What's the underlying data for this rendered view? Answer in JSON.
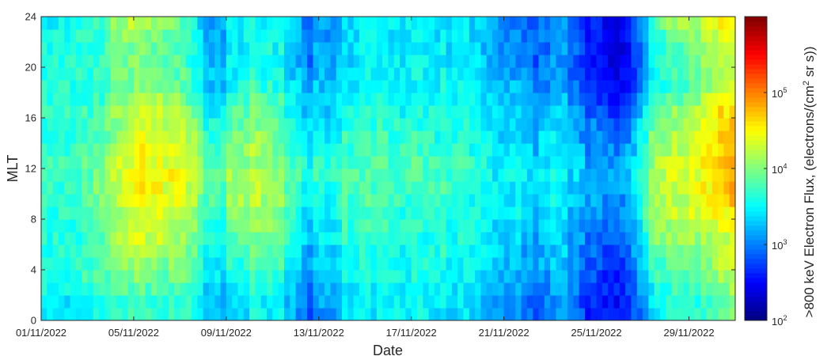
{
  "chart_data": {
    "type": "heatmap",
    "xlabel": "Date",
    "ylabel": "MLT",
    "x_start": "01/11/2022",
    "x_end": "01/12/2022",
    "x_ticks": [
      "01/11/2022",
      "05/11/2022",
      "09/11/2022",
      "13/11/2022",
      "17/11/2022",
      "21/11/2022",
      "25/11/2022",
      "29/11/2022"
    ],
    "ylim": [
      0,
      24
    ],
    "y_ticks": [
      0,
      4,
      8,
      12,
      16,
      20,
      24
    ],
    "mlt_bins": [
      0.5,
      1.5,
      2.5,
      3.5,
      4.5,
      5.5,
      6.5,
      7.5,
      8.5,
      9.5,
      10.5,
      11.5,
      12.5,
      13.5,
      14.5,
      15.5,
      16.5,
      17.5,
      18.5,
      19.5,
      20.5,
      21.5,
      22.5,
      23.5
    ],
    "colorbar": {
      "label": ">800 keV Electron Flux, (electrons/(cm² sr s))",
      "scale": "log",
      "range": [
        100,
        1000000
      ],
      "colormap": "jet",
      "ticks": [
        {
          "value": 100,
          "base": "10",
          "exp": "2"
        },
        {
          "value": 1000,
          "base": "10",
          "exp": "3"
        },
        {
          "value": 10000,
          "base": "10",
          "exp": "4"
        },
        {
          "value": 100000,
          "base": "10",
          "exp": "5"
        }
      ]
    },
    "log10_flux_by_day": [
      {
        "date": "01/11/2022",
        "day": 0,
        "log10_flux": [
          3.4,
          3.4,
          3.5,
          3.6,
          3.6,
          3.6,
          3.6,
          3.6,
          3.6,
          3.7,
          3.7,
          3.7,
          3.8,
          3.7,
          3.6,
          3.6,
          3.7,
          3.6,
          3.6,
          3.6,
          3.6,
          3.6,
          3.6,
          3.5
        ]
      },
      {
        "date": "02/11/2022",
        "day": 1,
        "log10_flux": [
          3.4,
          3.4,
          3.5,
          3.6,
          3.6,
          3.6,
          3.6,
          3.6,
          3.7,
          3.7,
          3.7,
          3.7,
          3.8,
          3.7,
          3.6,
          3.6,
          3.7,
          3.6,
          3.6,
          3.6,
          3.6,
          3.6,
          3.6,
          3.5
        ]
      },
      {
        "date": "03/11/2022",
        "day": 2,
        "log10_flux": [
          3.5,
          3.5,
          3.6,
          3.7,
          3.7,
          3.7,
          3.7,
          3.7,
          3.8,
          3.9,
          3.9,
          3.9,
          3.9,
          3.8,
          3.7,
          3.7,
          3.7,
          3.6,
          3.6,
          3.6,
          3.6,
          3.6,
          3.6,
          3.6
        ]
      },
      {
        "date": "04/11/2022",
        "day": 3,
        "log10_flux": [
          3.7,
          3.7,
          3.8,
          3.9,
          4.0,
          4.1,
          4.2,
          4.2,
          4.2,
          4.3,
          4.3,
          4.3,
          4.3,
          4.3,
          4.2,
          4.1,
          4.1,
          4.0,
          3.9,
          3.9,
          3.9,
          3.9,
          4.0,
          4.1
        ]
      },
      {
        "date": "05/11/2022",
        "day": 4,
        "log10_flux": [
          3.8,
          3.8,
          3.9,
          4.0,
          4.1,
          4.2,
          4.3,
          4.3,
          4.4,
          4.6,
          4.6,
          4.6,
          4.5,
          4.5,
          4.4,
          4.4,
          4.4,
          4.2,
          4.0,
          4.0,
          4.0,
          4.0,
          4.1,
          4.3
        ]
      },
      {
        "date": "06/11/2022",
        "day": 5,
        "log10_flux": [
          3.7,
          3.7,
          3.8,
          3.9,
          4.0,
          4.1,
          4.2,
          4.2,
          4.3,
          4.4,
          4.4,
          4.5,
          4.4,
          4.4,
          4.3,
          4.3,
          4.2,
          4.1,
          3.9,
          3.9,
          3.9,
          3.9,
          3.9,
          4.0
        ]
      },
      {
        "date": "07/11/2022",
        "day": 6,
        "log10_flux": [
          3.6,
          3.6,
          3.7,
          3.8,
          3.8,
          3.9,
          4.0,
          4.0,
          4.1,
          4.2,
          4.2,
          4.3,
          4.2,
          4.2,
          4.1,
          4.0,
          3.9,
          3.8,
          3.7,
          3.7,
          3.6,
          3.6,
          3.6,
          3.6
        ]
      },
      {
        "date": "08/11/2022",
        "day": 7,
        "log10_flux": [
          3.2,
          3.3,
          3.3,
          3.4,
          3.4,
          3.5,
          3.5,
          3.6,
          3.6,
          3.7,
          3.7,
          3.8,
          3.8,
          3.7,
          3.6,
          3.5,
          3.4,
          3.3,
          3.2,
          3.2,
          3.2,
          3.1,
          3.1,
          3.1
        ]
      },
      {
        "date": "09/11/2022",
        "day": 8,
        "log10_flux": [
          3.4,
          3.4,
          3.5,
          3.6,
          3.7,
          3.8,
          3.9,
          4.0,
          4.1,
          4.2,
          4.2,
          4.2,
          4.1,
          4.1,
          4.0,
          3.9,
          3.9,
          3.8,
          3.6,
          3.5,
          3.5,
          3.5,
          3.5,
          3.5
        ]
      },
      {
        "date": "10/11/2022",
        "day": 9,
        "log10_flux": [
          3.5,
          3.5,
          3.6,
          3.7,
          3.8,
          3.9,
          4.0,
          4.1,
          4.1,
          4.2,
          4.2,
          4.2,
          4.1,
          4.1,
          4.1,
          4.0,
          4.0,
          3.9,
          3.7,
          3.6,
          3.6,
          3.6,
          3.6,
          3.6
        ]
      },
      {
        "date": "11/11/2022",
        "day": 10,
        "log10_flux": [
          3.4,
          3.4,
          3.5,
          3.6,
          3.7,
          3.7,
          3.8,
          3.9,
          3.9,
          4.0,
          4.0,
          4.0,
          3.9,
          3.9,
          3.8,
          3.8,
          3.7,
          3.7,
          3.6,
          3.5,
          3.5,
          3.5,
          3.5,
          3.5
        ]
      },
      {
        "date": "12/11/2022",
        "day": 11,
        "log10_flux": [
          2.9,
          3.0,
          3.0,
          3.1,
          3.2,
          3.2,
          3.3,
          3.4,
          3.4,
          3.5,
          3.5,
          3.6,
          3.6,
          3.5,
          3.4,
          3.4,
          3.3,
          3.3,
          3.2,
          3.1,
          3.0,
          3.0,
          3.0,
          3.0
        ]
      },
      {
        "date": "13/11/2022",
        "day": 12,
        "log10_flux": [
          3.2,
          3.2,
          3.3,
          3.3,
          3.4,
          3.4,
          3.5,
          3.5,
          3.6,
          3.6,
          3.7,
          3.7,
          3.7,
          3.6,
          3.5,
          3.5,
          3.4,
          3.4,
          3.3,
          3.3,
          3.2,
          3.2,
          3.2,
          3.2
        ]
      },
      {
        "date": "14/11/2022",
        "day": 13,
        "log10_flux": [
          3.4,
          3.4,
          3.5,
          3.5,
          3.6,
          3.6,
          3.6,
          3.7,
          3.7,
          3.7,
          3.8,
          3.8,
          3.8,
          3.7,
          3.7,
          3.6,
          3.6,
          3.5,
          3.5,
          3.4,
          3.4,
          3.4,
          3.4,
          3.4
        ]
      },
      {
        "date": "15/11/2022",
        "day": 14,
        "log10_flux": [
          3.5,
          3.5,
          3.5,
          3.6,
          3.6,
          3.6,
          3.7,
          3.7,
          3.7,
          3.8,
          3.8,
          3.8,
          3.8,
          3.8,
          3.7,
          3.7,
          3.6,
          3.6,
          3.5,
          3.5,
          3.5,
          3.5,
          3.5,
          3.5
        ]
      },
      {
        "date": "16/11/2022",
        "day": 15,
        "log10_flux": [
          3.5,
          3.5,
          3.5,
          3.6,
          3.6,
          3.6,
          3.7,
          3.7,
          3.7,
          3.8,
          3.8,
          3.8,
          3.8,
          3.8,
          3.7,
          3.7,
          3.6,
          3.6,
          3.5,
          3.5,
          3.5,
          3.5,
          3.5,
          3.5
        ]
      },
      {
        "date": "17/11/2022",
        "day": 16,
        "log10_flux": [
          3.5,
          3.5,
          3.5,
          3.6,
          3.6,
          3.6,
          3.6,
          3.7,
          3.7,
          3.7,
          3.8,
          3.8,
          3.8,
          3.7,
          3.7,
          3.6,
          3.6,
          3.6,
          3.5,
          3.5,
          3.5,
          3.5,
          3.5,
          3.5
        ]
      },
      {
        "date": "18/11/2022",
        "day": 17,
        "log10_flux": [
          3.4,
          3.4,
          3.5,
          3.5,
          3.5,
          3.6,
          3.6,
          3.6,
          3.7,
          3.7,
          3.7,
          3.7,
          3.7,
          3.7,
          3.6,
          3.6,
          3.6,
          3.5,
          3.5,
          3.5,
          3.4,
          3.4,
          3.4,
          3.4
        ]
      },
      {
        "date": "19/11/2022",
        "day": 18,
        "log10_flux": [
          3.4,
          3.4,
          3.4,
          3.5,
          3.5,
          3.5,
          3.6,
          3.6,
          3.6,
          3.6,
          3.7,
          3.7,
          3.7,
          3.6,
          3.6,
          3.6,
          3.5,
          3.5,
          3.5,
          3.4,
          3.4,
          3.4,
          3.4,
          3.4
        ]
      },
      {
        "date": "20/11/2022",
        "day": 19,
        "log10_flux": [
          3.2,
          3.2,
          3.3,
          3.3,
          3.3,
          3.4,
          3.4,
          3.4,
          3.5,
          3.5,
          3.5,
          3.5,
          3.5,
          3.5,
          3.4,
          3.4,
          3.4,
          3.3,
          3.3,
          3.2,
          3.2,
          3.2,
          3.2,
          3.2
        ]
      },
      {
        "date": "21/11/2022",
        "day": 20,
        "log10_flux": [
          3.0,
          3.0,
          3.1,
          3.1,
          3.2,
          3.2,
          3.3,
          3.3,
          3.4,
          3.4,
          3.4,
          3.5,
          3.5,
          3.4,
          3.4,
          3.3,
          3.3,
          3.2,
          3.2,
          3.1,
          3.0,
          3.0,
          3.0,
          3.0
        ]
      },
      {
        "date": "22/11/2022",
        "day": 21,
        "log10_flux": [
          2.9,
          2.9,
          3.0,
          3.0,
          3.1,
          3.1,
          3.2,
          3.3,
          3.3,
          3.4,
          3.4,
          3.4,
          3.4,
          3.3,
          3.3,
          3.2,
          3.2,
          3.1,
          3.0,
          3.0,
          2.9,
          2.9,
          2.9,
          2.9
        ]
      },
      {
        "date": "23/11/2022",
        "day": 22,
        "log10_flux": [
          3.1,
          3.1,
          3.2,
          3.2,
          3.3,
          3.3,
          3.3,
          3.4,
          3.4,
          3.5,
          3.5,
          3.5,
          3.5,
          3.5,
          3.4,
          3.4,
          3.3,
          3.3,
          3.2,
          3.1,
          3.1,
          3.1,
          3.1,
          3.1
        ]
      },
      {
        "date": "24/11/2022",
        "day": 23,
        "log10_flux": [
          2.7,
          2.7,
          2.7,
          2.8,
          2.8,
          2.9,
          3.0,
          3.0,
          3.1,
          3.1,
          3.2,
          3.2,
          3.2,
          3.1,
          3.0,
          3.0,
          2.9,
          2.8,
          2.7,
          2.6,
          2.6,
          2.6,
          2.6,
          2.6
        ]
      },
      {
        "date": "25/11/2022",
        "day": 24,
        "log10_flux": [
          2.5,
          2.5,
          2.6,
          2.6,
          2.7,
          2.8,
          2.8,
          2.9,
          3.0,
          3.0,
          3.1,
          3.1,
          3.0,
          3.0,
          2.9,
          2.8,
          2.7,
          2.6,
          2.5,
          2.4,
          2.4,
          2.4,
          2.4,
          2.4
        ]
      },
      {
        "date": "26/11/2022",
        "day": 25,
        "log10_flux": [
          2.7,
          2.7,
          2.8,
          2.8,
          2.9,
          3.0,
          3.0,
          3.1,
          3.2,
          3.2,
          3.3,
          3.3,
          3.3,
          3.2,
          3.1,
          3.0,
          2.9,
          2.8,
          2.7,
          2.6,
          2.6,
          2.6,
          2.6,
          2.6
        ]
      },
      {
        "date": "27/11/2022",
        "day": 26,
        "log10_flux": [
          3.4,
          3.4,
          3.5,
          3.6,
          3.7,
          3.8,
          3.9,
          4.0,
          4.1,
          4.1,
          4.1,
          4.1,
          4.1,
          4.0,
          4.0,
          3.9,
          3.8,
          3.7,
          3.5,
          3.5,
          3.5,
          3.5,
          3.6,
          3.7
        ]
      },
      {
        "date": "28/11/2022",
        "day": 27,
        "log10_flux": [
          3.6,
          3.6,
          3.7,
          3.8,
          3.9,
          4.0,
          4.1,
          4.1,
          4.2,
          4.2,
          4.2,
          4.3,
          4.3,
          4.2,
          4.1,
          4.0,
          4.0,
          3.9,
          3.7,
          3.7,
          3.7,
          3.8,
          3.9,
          4.1
        ]
      },
      {
        "date": "29/11/2022",
        "day": 28,
        "log10_flux": [
          3.7,
          3.7,
          3.8,
          3.9,
          4.0,
          4.1,
          4.2,
          4.3,
          4.4,
          4.5,
          4.5,
          4.5,
          4.5,
          4.5,
          4.4,
          4.4,
          4.3,
          4.2,
          4.0,
          4.0,
          4.0,
          4.1,
          4.2,
          4.3
        ]
      },
      {
        "date": "30/11/2022",
        "day": 29,
        "log10_flux": [
          3.9,
          3.9,
          4.0,
          4.1,
          4.2,
          4.3,
          4.3,
          4.4,
          4.5,
          4.7,
          4.7,
          4.7,
          4.7,
          4.7,
          4.6,
          4.6,
          4.6,
          4.5,
          4.3,
          4.2,
          4.2,
          4.3,
          4.4,
          4.5
        ]
      }
    ]
  }
}
